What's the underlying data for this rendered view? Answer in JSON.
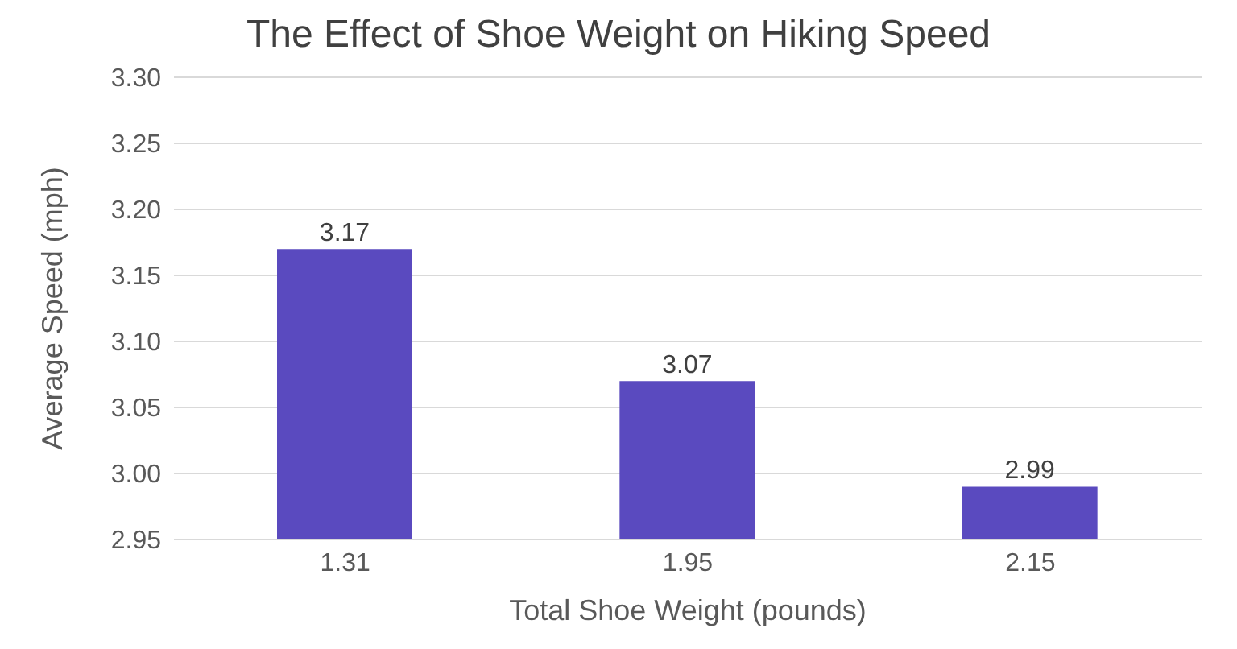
{
  "chart_data": {
    "type": "bar",
    "title": "The Effect of Shoe Weight on Hiking Speed",
    "xlabel": "Total Shoe Weight (pounds)",
    "ylabel": "Average Speed (mph)",
    "categories": [
      "1.31",
      "1.95",
      "2.15"
    ],
    "values": [
      3.17,
      3.07,
      2.99
    ],
    "color": "#5a4abf",
    "ylim": [
      2.95,
      3.3
    ],
    "yticks": [
      {
        "value": 2.95,
        "label": "2.95"
      },
      {
        "value": 3.0,
        "label": "3.00"
      },
      {
        "value": 3.05,
        "label": "3.05"
      },
      {
        "value": 3.1,
        "label": "3.10"
      },
      {
        "value": 3.15,
        "label": "3.15"
      },
      {
        "value": 3.2,
        "label": "3.20"
      },
      {
        "value": 3.25,
        "label": "3.25"
      },
      {
        "value": 3.3,
        "label": "3.30"
      }
    ],
    "grid": "y",
    "data_labels": true,
    "legend": false
  }
}
